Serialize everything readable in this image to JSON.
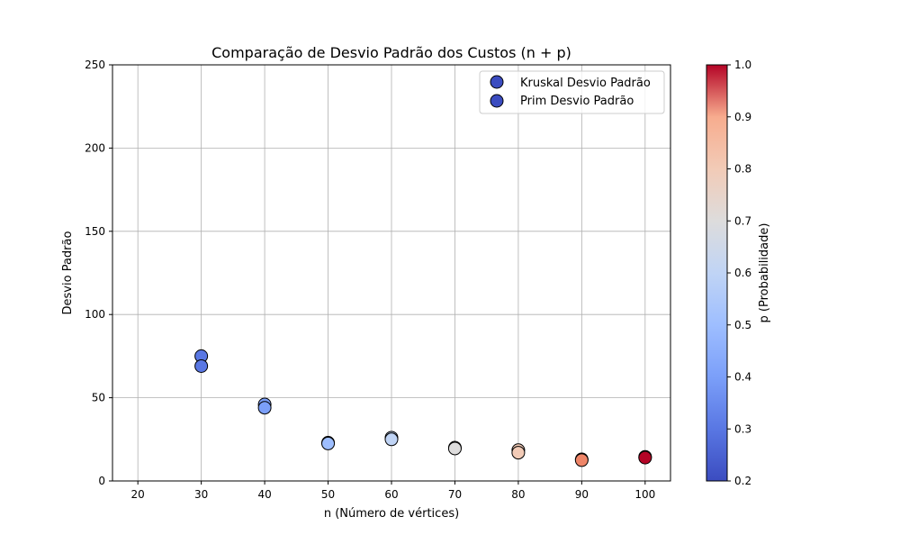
{
  "chart_data": {
    "type": "scatter",
    "title": "Comparação de Desvio Padrão dos Custos (n + p)",
    "xlabel": "n (Número de vértices)",
    "ylabel": "Desvio Padrão",
    "xlim": [
      16,
      104
    ],
    "ylim": [
      0,
      250
    ],
    "xticks": [
      20,
      30,
      40,
      50,
      60,
      70,
      80,
      90,
      100
    ],
    "yticks": [
      0,
      50,
      100,
      150,
      200,
      250
    ],
    "grid": true,
    "legend_position": "top-right",
    "colorbar": {
      "label": "p (Probabilidade)",
      "range": [
        0.2,
        1.0
      ],
      "ticks": [
        0.2,
        0.3,
        0.4,
        0.5,
        0.6,
        0.7,
        0.8,
        0.9,
        1.0
      ],
      "colormap": "coolwarm"
    },
    "legend_marker_color": "#3b4cc0",
    "series": [
      {
        "name": "Kruskal Desvio Padrão",
        "points": [
          {
            "x": 30,
            "y": 75,
            "p": 0.3
          },
          {
            "x": 40,
            "y": 46,
            "p": 0.4
          },
          {
            "x": 50,
            "y": 23,
            "p": 0.5
          },
          {
            "x": 60,
            "y": 26,
            "p": 0.6
          },
          {
            "x": 70,
            "y": 20,
            "p": 0.7
          },
          {
            "x": 80,
            "y": 18.5,
            "p": 0.8
          },
          {
            "x": 90,
            "y": 13,
            "p": 0.9
          },
          {
            "x": 100,
            "y": 14.5,
            "p": 1.0
          }
        ]
      },
      {
        "name": "Prim Desvio Padrão",
        "points": [
          {
            "x": 30,
            "y": 69,
            "p": 0.3
          },
          {
            "x": 40,
            "y": 44,
            "p": 0.4
          },
          {
            "x": 50,
            "y": 22.5,
            "p": 0.5
          },
          {
            "x": 60,
            "y": 25,
            "p": 0.6
          },
          {
            "x": 70,
            "y": 19.5,
            "p": 0.7
          },
          {
            "x": 80,
            "y": 17,
            "p": 0.8
          },
          {
            "x": 90,
            "y": 12.5,
            "p": 0.9
          },
          {
            "x": 100,
            "y": 14,
            "p": 1.0
          }
        ]
      }
    ]
  }
}
